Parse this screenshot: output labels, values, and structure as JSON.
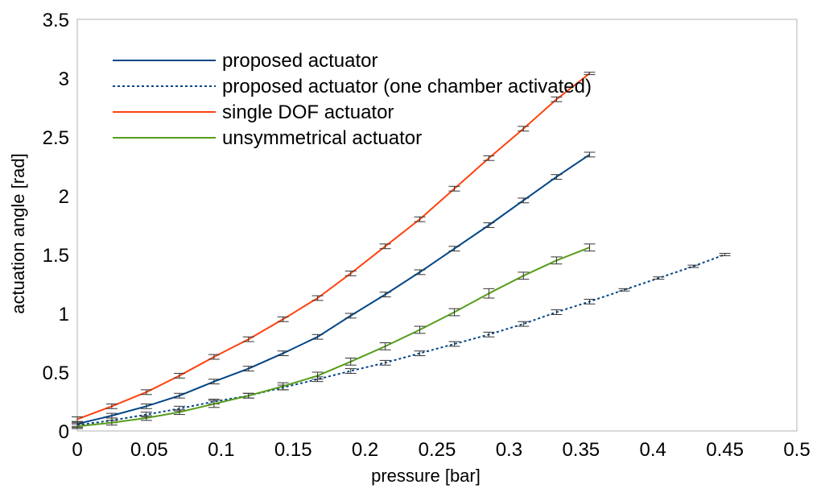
{
  "chart_data": {
    "type": "line",
    "title": "",
    "xlabel": "pressure [bar]",
    "ylabel": "actuation angle [rad]",
    "xlim": [
      0,
      0.5
    ],
    "ylim": [
      0,
      3.5
    ],
    "x_ticks": [
      "0",
      "0.05",
      "0.1",
      "0.15",
      "0.2",
      "0.25",
      "0.3",
      "0.35",
      "0.4",
      "0.45",
      "0.5"
    ],
    "y_ticks": [
      "0",
      "0.5",
      "1",
      "1.5",
      "2",
      "2.5",
      "3",
      "3.5"
    ],
    "grid": false,
    "legend_position": "top-left",
    "error_bar_color": "#333333",
    "series": [
      {
        "name": "proposed actuator",
        "color": "#004586",
        "dash": "solid",
        "x": [
          0,
          0.024,
          0.048,
          0.071,
          0.095,
          0.119,
          0.143,
          0.167,
          0.19,
          0.214,
          0.238,
          0.262,
          0.286,
          0.31,
          0.333,
          0.356
        ],
        "y": [
          0.06,
          0.13,
          0.21,
          0.3,
          0.42,
          0.53,
          0.66,
          0.8,
          0.98,
          1.16,
          1.35,
          1.55,
          1.75,
          1.96,
          2.16,
          2.35
        ],
        "err": [
          0.02,
          0.02,
          0.02,
          0.02,
          0.02,
          0.02,
          0.02,
          0.02,
          0.02,
          0.02,
          0.02,
          0.02,
          0.02,
          0.02,
          0.02,
          0.02
        ]
      },
      {
        "name": "proposed actuator (one chamber activated)",
        "color": "#004586",
        "dash": "dotted",
        "x": [
          0,
          0.024,
          0.048,
          0.071,
          0.095,
          0.119,
          0.143,
          0.167,
          0.19,
          0.214,
          0.238,
          0.262,
          0.286,
          0.31,
          0.333,
          0.356,
          0.38,
          0.404,
          0.428,
          0.45
        ],
        "y": [
          0.05,
          0.09,
          0.14,
          0.19,
          0.25,
          0.3,
          0.37,
          0.44,
          0.51,
          0.58,
          0.66,
          0.74,
          0.82,
          0.91,
          1.01,
          1.1,
          1.2,
          1.3,
          1.4,
          1.5
        ],
        "err": [
          0.02,
          0.02,
          0.02,
          0.02,
          0.02,
          0.02,
          0.02,
          0.02,
          0.02,
          0.02,
          0.02,
          0.02,
          0.02,
          0.02,
          0.02,
          0.02,
          0.01,
          0.01,
          0.01,
          0.01
        ]
      },
      {
        "name": "single DOF actuator",
        "color": "#ff420e",
        "dash": "solid",
        "x": [
          0,
          0.024,
          0.048,
          0.071,
          0.095,
          0.119,
          0.143,
          0.167,
          0.19,
          0.214,
          0.238,
          0.262,
          0.286,
          0.31,
          0.333,
          0.356
        ],
        "y": [
          0.1,
          0.21,
          0.33,
          0.47,
          0.63,
          0.78,
          0.95,
          1.13,
          1.34,
          1.57,
          1.8,
          2.06,
          2.32,
          2.57,
          2.82,
          3.04
        ],
        "err": [
          0.02,
          0.02,
          0.02,
          0.02,
          0.02,
          0.02,
          0.02,
          0.02,
          0.02,
          0.02,
          0.02,
          0.02,
          0.02,
          0.02,
          0.02,
          0.01
        ]
      },
      {
        "name": "unsymmetrical actuator",
        "color": "#579d1c",
        "dash": "solid",
        "x": [
          0,
          0.024,
          0.048,
          0.071,
          0.095,
          0.119,
          0.143,
          0.167,
          0.19,
          0.214,
          0.238,
          0.262,
          0.286,
          0.31,
          0.333,
          0.356
        ],
        "y": [
          0.04,
          0.07,
          0.11,
          0.16,
          0.23,
          0.3,
          0.38,
          0.47,
          0.59,
          0.72,
          0.86,
          1.01,
          1.17,
          1.32,
          1.45,
          1.56
        ],
        "err": [
          0.02,
          0.02,
          0.02,
          0.02,
          0.03,
          0.02,
          0.03,
          0.03,
          0.03,
          0.03,
          0.03,
          0.03,
          0.04,
          0.03,
          0.03,
          0.03
        ]
      }
    ]
  }
}
